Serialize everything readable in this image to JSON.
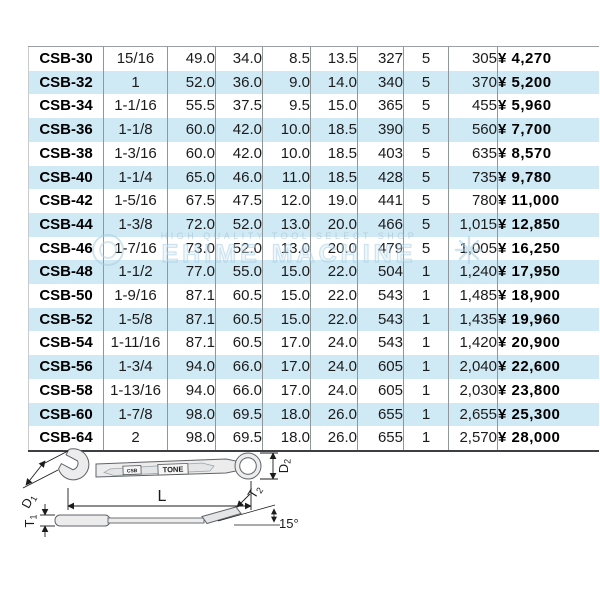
{
  "table": {
    "rows": [
      {
        "model": "CSB-30",
        "size": "15/16",
        "d1": "49.0",
        "d2": "34.0",
        "t1": "8.5",
        "t2": "13.5",
        "l": "327",
        "qty": "5",
        "weight": "305",
        "price": "¥ 4,270"
      },
      {
        "model": "CSB-32",
        "size": "1",
        "d1": "52.0",
        "d2": "36.0",
        "t1": "9.0",
        "t2": "14.0",
        "l": "340",
        "qty": "5",
        "weight": "370",
        "price": "¥ 5,200"
      },
      {
        "model": "CSB-34",
        "size": "1-1/16",
        "d1": "55.5",
        "d2": "37.5",
        "t1": "9.5",
        "t2": "15.0",
        "l": "365",
        "qty": "5",
        "weight": "455",
        "price": "¥ 5,960"
      },
      {
        "model": "CSB-36",
        "size": "1-1/8",
        "d1": "60.0",
        "d2": "42.0",
        "t1": "10.0",
        "t2": "18.5",
        "l": "390",
        "qty": "5",
        "weight": "560",
        "price": "¥ 7,700"
      },
      {
        "model": "CSB-38",
        "size": "1-3/16",
        "d1": "60.0",
        "d2": "42.0",
        "t1": "10.0",
        "t2": "18.5",
        "l": "403",
        "qty": "5",
        "weight": "635",
        "price": "¥ 8,570"
      },
      {
        "model": "CSB-40",
        "size": "1-1/4",
        "d1": "65.0",
        "d2": "46.0",
        "t1": "11.0",
        "t2": "18.5",
        "l": "428",
        "qty": "5",
        "weight": "735",
        "price": "¥ 9,780"
      },
      {
        "model": "CSB-42",
        "size": "1-5/16",
        "d1": "67.5",
        "d2": "47.5",
        "t1": "12.0",
        "t2": "19.0",
        "l": "441",
        "qty": "5",
        "weight": "780",
        "price": "¥ 11,000"
      },
      {
        "model": "CSB-44",
        "size": "1-3/8",
        "d1": "72.0",
        "d2": "52.0",
        "t1": "13.0",
        "t2": "20.0",
        "l": "466",
        "qty": "5",
        "weight": "1,015",
        "price": "¥ 12,850"
      },
      {
        "model": "CSB-46",
        "size": "1-7/16",
        "d1": "73.0",
        "d2": "52.0",
        "t1": "13.0",
        "t2": "20.0",
        "l": "479",
        "qty": "5",
        "weight": "1,005",
        "price": "¥ 16,250"
      },
      {
        "model": "CSB-48",
        "size": "1-1/2",
        "d1": "77.0",
        "d2": "55.0",
        "t1": "15.0",
        "t2": "22.0",
        "l": "504",
        "qty": "1",
        "weight": "1,240",
        "price": "¥ 17,950"
      },
      {
        "model": "CSB-50",
        "size": "1-9/16",
        "d1": "87.1",
        "d2": "60.5",
        "t1": "15.0",
        "t2": "22.0",
        "l": "543",
        "qty": "1",
        "weight": "1,485",
        "price": "¥ 18,900"
      },
      {
        "model": "CSB-52",
        "size": "1-5/8",
        "d1": "87.1",
        "d2": "60.5",
        "t1": "15.0",
        "t2": "22.0",
        "l": "543",
        "qty": "1",
        "weight": "1,435",
        "price": "¥ 19,960"
      },
      {
        "model": "CSB-54",
        "size": "1-11/16",
        "d1": "87.1",
        "d2": "60.5",
        "t1": "17.0",
        "t2": "24.0",
        "l": "543",
        "qty": "1",
        "weight": "1,420",
        "price": "¥ 20,900"
      },
      {
        "model": "CSB-56",
        "size": "1-3/4",
        "d1": "94.0",
        "d2": "66.0",
        "t1": "17.0",
        "t2": "24.0",
        "l": "605",
        "qty": "1",
        "weight": "2,040",
        "price": "¥ 22,600"
      },
      {
        "model": "CSB-58",
        "size": "1-13/16",
        "d1": "94.0",
        "d2": "66.0",
        "t1": "17.0",
        "t2": "24.0",
        "l": "605",
        "qty": "1",
        "weight": "2,030",
        "price": "¥ 23,800"
      },
      {
        "model": "CSB-60",
        "size": "1-7/8",
        "d1": "98.0",
        "d2": "69.5",
        "t1": "18.0",
        "t2": "26.0",
        "l": "655",
        "qty": "1",
        "weight": "2,655",
        "price": "¥ 25,300"
      },
      {
        "model": "CSB-64",
        "size": "2",
        "d1": "98.0",
        "d2": "69.5",
        "t1": "18.0",
        "t2": "26.0",
        "l": "655",
        "qty": "1",
        "weight": "2,570",
        "price": "¥ 28,000"
      }
    ],
    "stripe_color": "#cfe9f5"
  },
  "watermark": {
    "slogan": "HIGH QUALITY TOOL SELECT SHOP",
    "name": "EHIME MACHINE"
  },
  "diagram": {
    "labels": {
      "d1": "D1",
      "d2": "D2",
      "length": "L",
      "t1": "T1",
      "t2": "T2",
      "angle": "15°",
      "brand": "TONE",
      "stamp": "CSB"
    }
  }
}
